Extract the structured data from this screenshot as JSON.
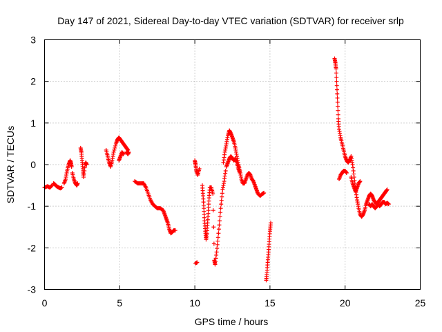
{
  "chart_data": {
    "type": "scatter",
    "title": "Day 147 of 2021, Sidereal Day-to-day VTEC variation (SDTVAR) for receiver srlp",
    "xlabel": "GPS time / hours",
    "ylabel": "SDTVAR / TECUs",
    "xlim": [
      0,
      25
    ],
    "ylim": [
      -3,
      3
    ],
    "xticks": [
      0,
      5,
      10,
      15,
      20,
      25
    ],
    "yticks": [
      -3,
      -2,
      -1,
      0,
      1,
      2,
      3
    ],
    "grid": true,
    "marker": "plus",
    "color": "#ff0000",
    "series": [
      {
        "name": "SDTVAR",
        "segments": [
          [
            [
              0.0,
              -0.55
            ],
            [
              0.2,
              -0.52
            ],
            [
              0.35,
              -0.55
            ],
            [
              0.5,
              -0.5
            ]
          ],
          [
            [
              0.6,
              -0.45
            ],
            [
              0.7,
              -0.48
            ],
            [
              0.8,
              -0.52
            ],
            [
              0.95,
              -0.55
            ],
            [
              1.05,
              -0.57
            ],
            [
              1.15,
              -0.55
            ]
          ],
          [
            [
              1.3,
              -0.45
            ],
            [
              1.4,
              -0.35
            ],
            [
              1.5,
              -0.15
            ],
            [
              1.6,
              0.0
            ],
            [
              1.7,
              0.1
            ],
            [
              1.75,
              0.05
            ],
            [
              1.8,
              -0.05
            ]
          ],
          [
            [
              1.85,
              -0.2
            ],
            [
              1.95,
              -0.35
            ],
            [
              2.05,
              -0.45
            ],
            [
              2.15,
              -0.5
            ],
            [
              2.2,
              -0.45
            ]
          ],
          [
            [
              2.4,
              0.4
            ],
            [
              2.45,
              0.3
            ],
            [
              2.5,
              0.1
            ],
            [
              2.55,
              -0.1
            ],
            [
              2.6,
              -0.3
            ],
            [
              2.7,
              0.0
            ],
            [
              2.75,
              0.05
            ],
            [
              2.8,
              0.0
            ]
          ],
          [
            [
              4.1,
              0.35
            ],
            [
              4.2,
              0.2
            ],
            [
              4.3,
              0.05
            ],
            [
              4.4,
              -0.05
            ],
            [
              4.5,
              0.1
            ],
            [
              4.6,
              0.3
            ],
            [
              4.75,
              0.5
            ],
            [
              4.85,
              0.6
            ],
            [
              4.95,
              0.65
            ],
            [
              5.05,
              0.6
            ],
            [
              5.15,
              0.55
            ],
            [
              5.25,
              0.5
            ],
            [
              5.35,
              0.45
            ],
            [
              5.45,
              0.4
            ],
            [
              5.55,
              0.35
            ]
          ],
          [
            [
              4.95,
              0.1
            ],
            [
              5.05,
              0.2
            ],
            [
              5.15,
              0.3
            ],
            [
              5.25,
              0.25
            ]
          ],
          [
            [
              5.45,
              0.3
            ],
            [
              5.55,
              0.25
            ],
            [
              5.6,
              0.3
            ]
          ],
          [
            [
              6.0,
              -0.4
            ],
            [
              6.2,
              -0.45
            ],
            [
              6.4,
              -0.45
            ],
            [
              6.6,
              -0.45
            ],
            [
              6.75,
              -0.55
            ],
            [
              6.9,
              -0.7
            ],
            [
              7.05,
              -0.85
            ],
            [
              7.2,
              -0.95
            ],
            [
              7.35,
              -1.0
            ],
            [
              7.5,
              -1.05
            ],
            [
              7.7,
              -1.05
            ],
            [
              7.9,
              -1.1
            ],
            [
              8.0,
              -1.2
            ],
            [
              8.1,
              -1.3
            ],
            [
              8.2,
              -1.4
            ],
            [
              8.3,
              -1.55
            ],
            [
              8.4,
              -1.65
            ],
            [
              8.5,
              -1.62
            ],
            [
              8.6,
              -1.58
            ],
            [
              8.7,
              -1.58
            ]
          ],
          [
            [
              10.0,
              0.1
            ],
            [
              10.05,
              0.0
            ],
            [
              10.1,
              -0.15
            ],
            [
              10.2,
              -0.25
            ],
            [
              10.3,
              -0.1
            ]
          ],
          [
            [
              10.05,
              -2.37
            ],
            [
              10.15,
              -2.35
            ]
          ],
          [
            [
              10.5,
              -0.5
            ],
            [
              10.55,
              -0.75
            ],
            [
              10.6,
              -1.05
            ],
            [
              10.65,
              -1.35
            ],
            [
              10.7,
              -1.6
            ],
            [
              10.75,
              -1.8
            ],
            [
              10.8,
              -1.65
            ],
            [
              10.85,
              -1.4
            ],
            [
              10.9,
              -1.1
            ],
            [
              10.95,
              -0.8
            ],
            [
              11.0,
              -0.55
            ],
            [
              11.1,
              -0.55
            ],
            [
              11.2,
              -0.7
            ],
            [
              11.3,
              -2.3
            ],
            [
              11.35,
              -2.4
            ],
            [
              11.45,
              -2.1
            ],
            [
              11.55,
              -1.75
            ],
            [
              11.65,
              -1.35
            ],
            [
              11.75,
              -0.95
            ],
            [
              11.85,
              -0.6
            ],
            [
              11.95,
              -0.4
            ],
            [
              12.05,
              -0.15
            ]
          ],
          [
            [
              11.9,
              0.05
            ],
            [
              12.0,
              0.3
            ],
            [
              12.1,
              0.5
            ],
            [
              12.2,
              0.7
            ],
            [
              12.3,
              0.82
            ],
            [
              12.4,
              0.75
            ],
            [
              12.5,
              0.65
            ],
            [
              12.6,
              0.55
            ],
            [
              12.7,
              0.4
            ],
            [
              12.8,
              0.2
            ],
            [
              12.9,
              0.0
            ],
            [
              13.0,
              -0.15
            ],
            [
              13.1,
              -0.35
            ],
            [
              13.2,
              -0.45
            ],
            [
              13.3,
              -0.45
            ],
            [
              13.4,
              -0.35
            ],
            [
              13.5,
              -0.25
            ],
            [
              13.6,
              -0.2
            ],
            [
              13.7,
              -0.25
            ],
            [
              13.8,
              -0.35
            ],
            [
              13.9,
              -0.4
            ],
            [
              14.0,
              -0.5
            ],
            [
              14.1,
              -0.6
            ],
            [
              14.2,
              -0.7
            ],
            [
              14.35,
              -0.75
            ],
            [
              14.5,
              -0.7
            ],
            [
              14.6,
              -0.68
            ]
          ],
          [
            [
              12.1,
              -0.05
            ],
            [
              12.2,
              0.05
            ],
            [
              12.3,
              0.15
            ],
            [
              12.4,
              0.2
            ],
            [
              12.5,
              0.15
            ],
            [
              12.6,
              0.1
            ],
            [
              12.7,
              0.15
            ],
            [
              12.8,
              0.05
            ],
            [
              12.9,
              -0.1
            ],
            [
              13.0,
              -0.2
            ]
          ],
          [
            [
              14.75,
              -2.78
            ],
            [
              14.8,
              -2.6
            ],
            [
              14.85,
              -2.35
            ],
            [
              14.9,
              -2.1
            ],
            [
              14.95,
              -1.85
            ],
            [
              15.0,
              -1.6
            ],
            [
              15.05,
              -1.4
            ]
          ],
          [
            [
              19.3,
              2.55
            ],
            [
              19.35,
              2.45
            ],
            [
              19.4,
              2.3
            ],
            [
              19.45,
              1.9
            ],
            [
              19.5,
              1.5
            ],
            [
              19.55,
              1.1
            ],
            [
              19.6,
              0.85
            ],
            [
              19.7,
              0.65
            ],
            [
              19.8,
              0.5
            ],
            [
              19.9,
              0.35
            ],
            [
              20.0,
              0.2
            ],
            [
              20.1,
              0.1
            ],
            [
              20.2,
              0.05
            ],
            [
              20.3,
              0.1
            ],
            [
              20.4,
              0.2
            ],
            [
              20.5,
              0.0
            ],
            [
              20.6,
              -0.3
            ],
            [
              20.7,
              -0.6
            ],
            [
              20.8,
              -0.85
            ],
            [
              20.9,
              -1.05
            ],
            [
              21.0,
              -1.2
            ],
            [
              21.1,
              -1.25
            ],
            [
              21.2,
              -1.2
            ],
            [
              21.3,
              -1.1
            ],
            [
              21.4,
              -0.95
            ],
            [
              21.5,
              -0.85
            ],
            [
              21.6,
              -0.75
            ],
            [
              21.7,
              -0.7
            ],
            [
              21.8,
              -0.75
            ],
            [
              21.9,
              -0.85
            ],
            [
              22.0,
              -0.9
            ],
            [
              22.1,
              -0.95
            ],
            [
              22.2,
              -0.9
            ],
            [
              22.3,
              -0.85
            ],
            [
              22.4,
              -0.8
            ],
            [
              22.5,
              -0.75
            ],
            [
              22.6,
              -0.7
            ],
            [
              22.7,
              -0.65
            ],
            [
              22.8,
              -0.6
            ]
          ],
          [
            [
              19.6,
              -0.35
            ],
            [
              19.7,
              -0.25
            ],
            [
              19.8,
              -0.2
            ],
            [
              19.9,
              -0.15
            ],
            [
              20.0,
              -0.15
            ],
            [
              20.1,
              -0.2
            ]
          ],
          [
            [
              20.4,
              -0.3
            ],
            [
              20.5,
              -0.45
            ],
            [
              20.6,
              -0.55
            ],
            [
              20.7,
              -0.65
            ],
            [
              20.8,
              -0.55
            ],
            [
              20.9,
              -0.45
            ],
            [
              21.0,
              -0.4
            ]
          ],
          [
            [
              21.6,
              -0.95
            ],
            [
              21.7,
              -1.0
            ],
            [
              21.8,
              -0.95
            ],
            [
              21.9,
              -1.0
            ],
            [
              22.0,
              -1.05
            ],
            [
              22.1,
              -1.0
            ],
            [
              22.2,
              -0.95
            ],
            [
              22.3,
              -1.0
            ],
            [
              22.4,
              -0.95
            ],
            [
              22.5,
              -0.9
            ],
            [
              22.6,
              -0.9
            ],
            [
              22.7,
              -0.95
            ],
            [
              22.8,
              -0.92
            ],
            [
              22.9,
              -0.95
            ]
          ]
        ]
      }
    ]
  }
}
